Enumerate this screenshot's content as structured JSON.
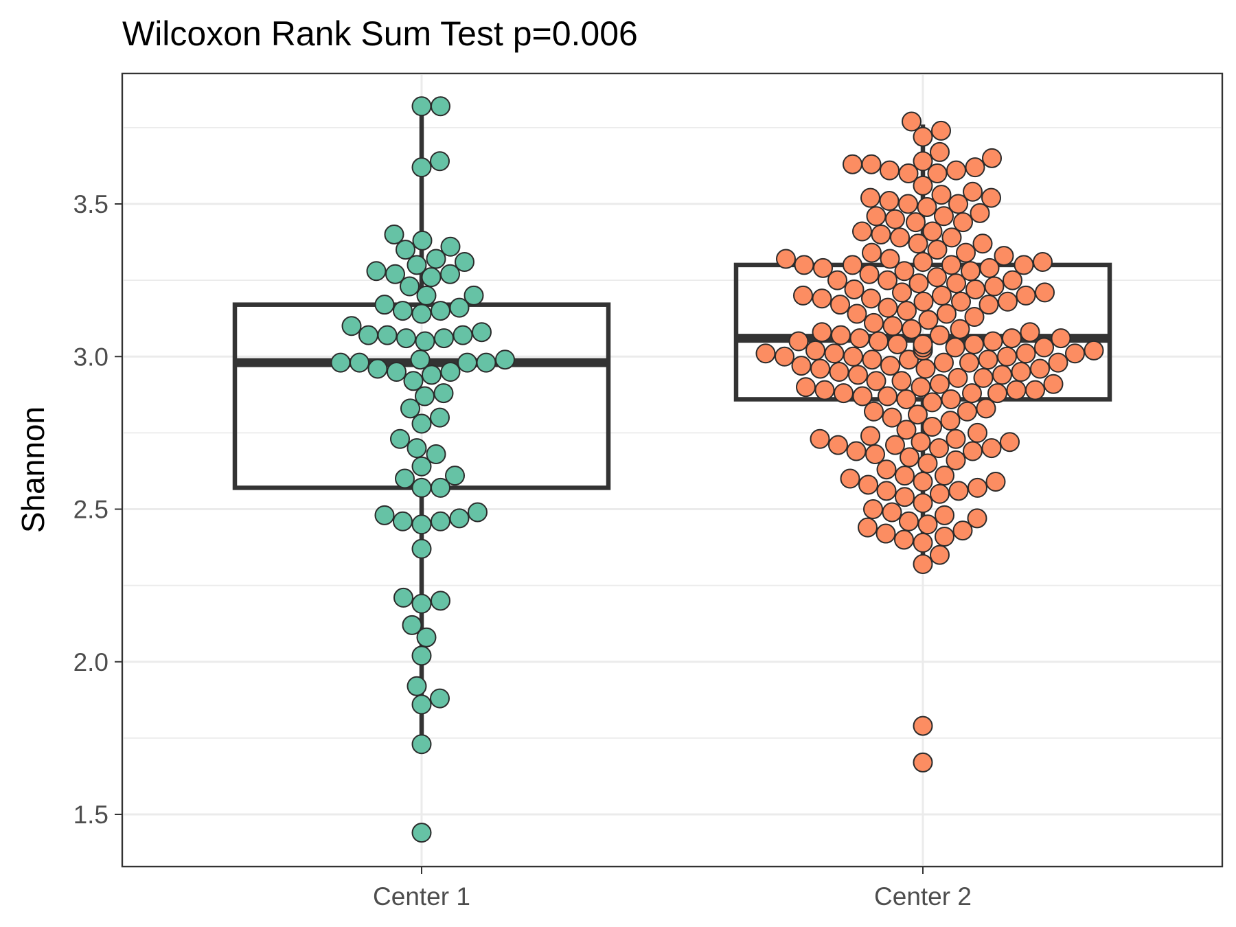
{
  "chart_data": {
    "type": "boxplot-beeswarm",
    "title": "Wilcoxon Rank Sum Test p=0.006",
    "xlabel": "",
    "ylabel": "Shannon",
    "ylim": [
      1.32,
      3.92
    ],
    "yticks": [
      1.5,
      2.0,
      2.5,
      3.0,
      3.5
    ],
    "ytick_labels": [
      "1.5",
      "2.0",
      "2.5",
      "3.0",
      "3.5"
    ],
    "categories": [
      "Center 1",
      "Center 2"
    ],
    "groups": [
      {
        "name": "Center 1",
        "color": "#66c2a5",
        "box": {
          "whisker_low": 1.73,
          "q1": 2.57,
          "median": 2.98,
          "q3": 3.17,
          "whisker_high": 3.81
        },
        "points": [
          3.82,
          3.82,
          3.64,
          3.62,
          3.4,
          3.38,
          3.36,
          3.35,
          3.32,
          3.31,
          3.3,
          3.28,
          3.27,
          3.27,
          3.26,
          3.23,
          3.2,
          3.2,
          3.17,
          3.16,
          3.15,
          3.15,
          3.14,
          3.1,
          3.08,
          3.07,
          3.07,
          3.07,
          3.06,
          3.06,
          3.05,
          2.99,
          2.99,
          2.98,
          2.98,
          2.98,
          2.98,
          2.96,
          2.95,
          2.95,
          2.94,
          2.92,
          2.88,
          2.87,
          2.83,
          2.8,
          2.78,
          2.73,
          2.7,
          2.68,
          2.64,
          2.61,
          2.6,
          2.57,
          2.57,
          2.49,
          2.48,
          2.47,
          2.46,
          2.46,
          2.45,
          2.37,
          2.21,
          2.2,
          2.19,
          2.12,
          2.08,
          2.02,
          1.92,
          1.88,
          1.86,
          1.73,
          1.44
        ]
      },
      {
        "name": "Center 2",
        "color": "#fc8d62",
        "box": {
          "whisker_low": 2.32,
          "q1": 2.86,
          "median": 3.06,
          "q3": 3.3,
          "whisker_high": 3.76
        },
        "points": [
          3.77,
          3.74,
          3.72,
          3.67,
          3.65,
          3.64,
          3.63,
          3.63,
          3.62,
          3.61,
          3.61,
          3.6,
          3.6,
          3.56,
          3.54,
          3.53,
          3.52,
          3.52,
          3.51,
          3.5,
          3.5,
          3.49,
          3.47,
          3.46,
          3.46,
          3.45,
          3.44,
          3.44,
          3.41,
          3.41,
          3.4,
          3.39,
          3.39,
          3.37,
          3.37,
          3.35,
          3.34,
          3.34,
          3.33,
          3.32,
          3.32,
          3.31,
          3.31,
          3.3,
          3.3,
          3.3,
          3.3,
          3.29,
          3.29,
          3.28,
          3.28,
          3.27,
          3.26,
          3.25,
          3.25,
          3.25,
          3.24,
          3.24,
          3.23,
          3.22,
          3.22,
          3.21,
          3.21,
          3.2,
          3.2,
          3.2,
          3.19,
          3.19,
          3.18,
          3.18,
          3.18,
          3.17,
          3.17,
          3.16,
          3.15,
          3.14,
          3.14,
          3.13,
          3.12,
          3.11,
          3.1,
          3.09,
          3.09,
          3.08,
          3.08,
          3.07,
          3.07,
          3.06,
          3.06,
          3.06,
          3.05,
          3.05,
          3.05,
          3.04,
          3.04,
          3.04,
          3.03,
          3.03,
          3.03,
          3.02,
          3.02,
          3.02,
          3.02,
          3.01,
          3.01,
          3.01,
          3.01,
          3.0,
          3.0,
          3.0,
          2.99,
          2.99,
          2.99,
          2.98,
          2.98,
          2.98,
          2.97,
          2.97,
          2.96,
          2.96,
          2.96,
          2.95,
          2.95,
          2.94,
          2.94,
          2.93,
          2.93,
          2.92,
          2.92,
          2.91,
          2.91,
          2.9,
          2.9,
          2.89,
          2.89,
          2.89,
          2.88,
          2.88,
          2.88,
          2.87,
          2.87,
          2.86,
          2.86,
          2.85,
          2.83,
          2.82,
          2.82,
          2.81,
          2.8,
          2.79,
          2.77,
          2.76,
          2.75,
          2.74,
          2.73,
          2.73,
          2.72,
          2.72,
          2.71,
          2.71,
          2.7,
          2.7,
          2.69,
          2.69,
          2.68,
          2.67,
          2.66,
          2.65,
          2.63,
          2.61,
          2.61,
          2.6,
          2.59,
          2.59,
          2.58,
          2.57,
          2.56,
          2.56,
          2.55,
          2.54,
          2.52,
          2.5,
          2.49,
          2.48,
          2.47,
          2.46,
          2.45,
          2.44,
          2.43,
          2.42,
          2.41,
          2.4,
          2.39,
          2.35,
          2.32,
          1.79,
          1.67
        ]
      }
    ]
  }
}
